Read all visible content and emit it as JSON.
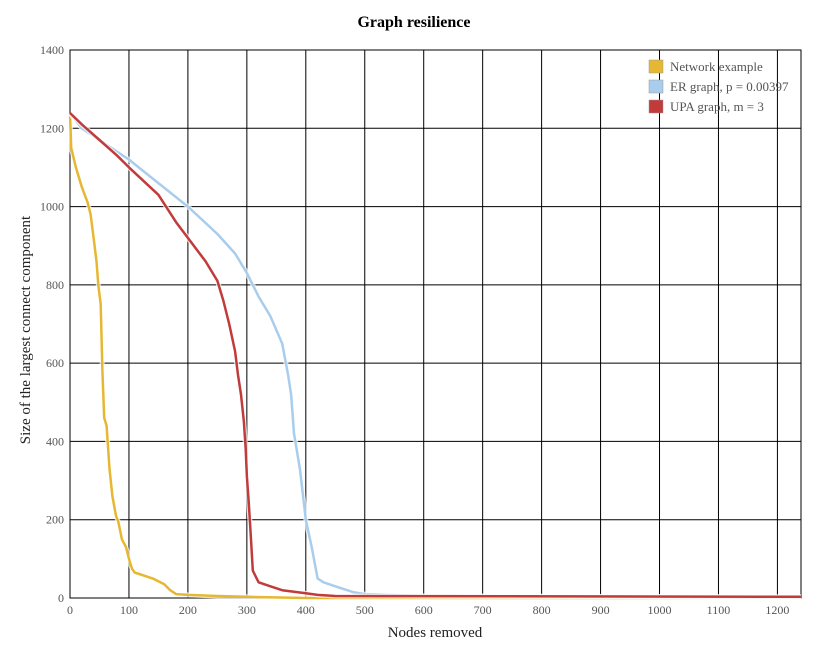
{
  "chart_data": {
    "type": "line",
    "title": "Graph resilience",
    "xlabel": "Nodes removed",
    "ylabel": "Size of the largest connect component",
    "xlim": [
      0,
      1240
    ],
    "ylim": [
      0,
      1400
    ],
    "xticks": [
      0,
      100,
      200,
      300,
      400,
      500,
      600,
      700,
      800,
      900,
      1000,
      1100,
      1200
    ],
    "yticks": [
      0,
      200,
      400,
      600,
      800,
      1000,
      1200,
      1400
    ],
    "grid": true,
    "legend_position": "top-right",
    "series": [
      {
        "name": "Network example",
        "color": "#e6b832",
        "x": [
          0,
          2,
          10,
          20,
          30,
          35,
          40,
          45,
          48,
          52,
          55,
          58,
          62,
          67,
          72,
          78,
          82,
          88,
          95,
          100,
          105,
          110,
          120,
          140,
          160,
          170,
          180,
          200,
          250,
          300,
          400,
          1240
        ],
        "y": [
          1239,
          1150,
          1100,
          1050,
          1010,
          980,
          920,
          860,
          800,
          750,
          580,
          460,
          440,
          330,
          260,
          210,
          195,
          150,
          130,
          100,
          75,
          65,
          60,
          50,
          35,
          20,
          10,
          8,
          5,
          3,
          0,
          0
        ]
      },
      {
        "name": "ER graph, p = 0.00397",
        "color": "#a9cdec",
        "x": [
          0,
          20,
          50,
          80,
          100,
          150,
          200,
          250,
          280,
          300,
          320,
          340,
          360,
          370,
          375,
          380,
          390,
          400,
          410,
          420,
          430,
          450,
          480,
          500,
          600,
          1240
        ],
        "y": [
          1239,
          1200,
          1170,
          1140,
          1120,
          1060,
          1000,
          930,
          880,
          830,
          770,
          720,
          650,
          570,
          520,
          420,
          330,
          200,
          130,
          50,
          40,
          30,
          15,
          10,
          5,
          2
        ]
      },
      {
        "name": "UPA graph, m = 3",
        "color": "#c23b3b",
        "x": [
          0,
          20,
          50,
          80,
          100,
          150,
          180,
          200,
          230,
          250,
          260,
          270,
          280,
          285,
          290,
          295,
          298,
          300,
          303,
          307,
          310,
          320,
          340,
          360,
          400,
          420,
          450,
          1240
        ],
        "y": [
          1239,
          1210,
          1170,
          1130,
          1100,
          1030,
          960,
          920,
          860,
          810,
          760,
          700,
          630,
          570,
          520,
          450,
          380,
          310,
          250,
          150,
          70,
          40,
          30,
          20,
          12,
          8,
          5,
          3
        ]
      }
    ]
  }
}
